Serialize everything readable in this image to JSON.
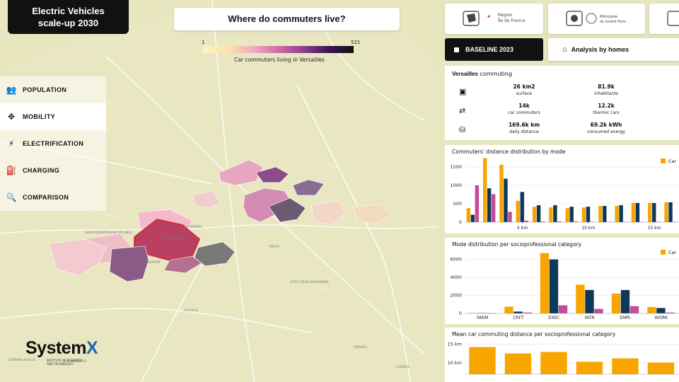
{
  "app": {
    "title_line1": "Electric Vehicles",
    "title_line2": "scale-up 2030"
  },
  "map": {
    "title": "Where do commuters live?",
    "legend_min": "1",
    "legend_max": "521",
    "legend_caption": "Car commuters living in Versailles",
    "place_labels": [
      "VERSAILLES",
      "LE CHESNAY",
      "GUYANCOURT",
      "VELIZY",
      "EVRY-COURCOURONNES",
      "LES ULIS",
      "SAINT-QUENTIN-EN-YVELINES",
      "DRAVEIL",
      "ORSAY",
      "CORBEIL",
      "CERNAY-LA-VILLE",
      "LES MOLIERES"
    ]
  },
  "nav": [
    {
      "label": "POPULATION",
      "icon": "people-icon"
    },
    {
      "label": "MOBILITY",
      "icon": "move-arrows-icon"
    },
    {
      "label": "ELECTRIFICATION",
      "icon": "lightning-icon"
    },
    {
      "label": "CHARGING",
      "icon": "charging-station-icon"
    },
    {
      "label": "COMPARISON",
      "icon": "search-icon"
    }
  ],
  "partners": [
    {
      "name": "Région Île de France",
      "line1": "Région",
      "line2": "Île de France"
    },
    {
      "name": "Métropole du Grand Paris",
      "line1": "Métropole",
      "line2": "du Grand Paris"
    }
  ],
  "controls": {
    "baseline_label": "BASELINE 2023",
    "analysis_label": "Analysis by homes"
  },
  "stats": {
    "city": "Versailles",
    "suffix": "commuting",
    "rows": [
      [
        {
          "value": "26 km2",
          "label": "surface"
        },
        {
          "value": "81.9k",
          "label": "inhabitants"
        }
      ],
      [
        {
          "value": "14k",
          "label": "car commuters"
        },
        {
          "value": "12.2k",
          "label": "thermic cars"
        }
      ],
      [
        {
          "value": "169.6k km",
          "label": "daily distance"
        },
        {
          "value": "69.2k kWh",
          "label": "consumed energy"
        }
      ]
    ]
  },
  "brand": {
    "name": "System",
    "mark": "X",
    "sub": "INSTITUTE OF RESEARCH AND TECHNOLOGY"
  },
  "colors": {
    "car": "#f8a500",
    "navy": "#0d3a5c",
    "magenta": "#c14c9a"
  },
  "charts": {
    "distance": {
      "title": "Commuters' distance distribution by mode",
      "legend": "Car"
    },
    "socio": {
      "title": "Mode distribution per socioprofessional category",
      "legend": "Car"
    },
    "mean": {
      "title": "Mean car commuting distance per socioprofessional category"
    }
  },
  "chart_data": [
    {
      "type": "bar",
      "title": "Commuters' distance distribution by mode",
      "ylim": [
        0,
        1750
      ],
      "yticks": [
        0,
        500,
        1000,
        1500
      ],
      "xtick_labels": [
        "5 km",
        "10 km",
        "15 km"
      ],
      "legend": [
        "Car"
      ],
      "series": [
        {
          "name": "Car",
          "color": "#f8a500",
          "values": [
            380,
            1740,
            1560,
            580,
            420,
            400,
            380,
            400,
            440,
            440,
            520,
            520,
            540
          ]
        },
        {
          "name": "",
          "color": "#0d3a5c",
          "values": [
            200,
            920,
            1180,
            820,
            460,
            460,
            420,
            420,
            440,
            460,
            520,
            520,
            540
          ]
        },
        {
          "name": "",
          "color": "#c14c9a",
          "values": [
            1000,
            760,
            280,
            40,
            20,
            20,
            20,
            10,
            10,
            10,
            10,
            10,
            10
          ]
        }
      ]
    },
    {
      "type": "bar",
      "title": "Mode distribution per socioprofessional category",
      "ylim": [
        0,
        7000
      ],
      "yticks": [
        0,
        2000,
        4000,
        6000
      ],
      "categories": [
        "FARM",
        "CRFT",
        "EXEC",
        "INTR",
        "EMPL",
        "WORK"
      ],
      "legend": [
        "Car"
      ],
      "series": [
        {
          "name": "Car",
          "color": "#f8a500",
          "values": [
            50,
            750,
            6700,
            3200,
            2200,
            700
          ]
        },
        {
          "name": "",
          "color": "#0d3a5c",
          "values": [
            40,
            200,
            6000,
            2600,
            2600,
            600
          ]
        },
        {
          "name": "",
          "color": "#c14c9a",
          "values": [
            10,
            100,
            900,
            500,
            800,
            100
          ]
        }
      ]
    },
    {
      "type": "bar",
      "title": "Mean car commuting distance per socioprofessional category",
      "ylim": [
        7,
        16
      ],
      "yticks": [
        10,
        15
      ],
      "ytick_labels": [
        "10 km",
        "15 km"
      ],
      "series": [
        {
          "name": "Car",
          "color": "#f8a500",
          "values": [
            14.2,
            12.5,
            12.9,
            10.3,
            11.2,
            10.1
          ]
        }
      ]
    }
  ]
}
